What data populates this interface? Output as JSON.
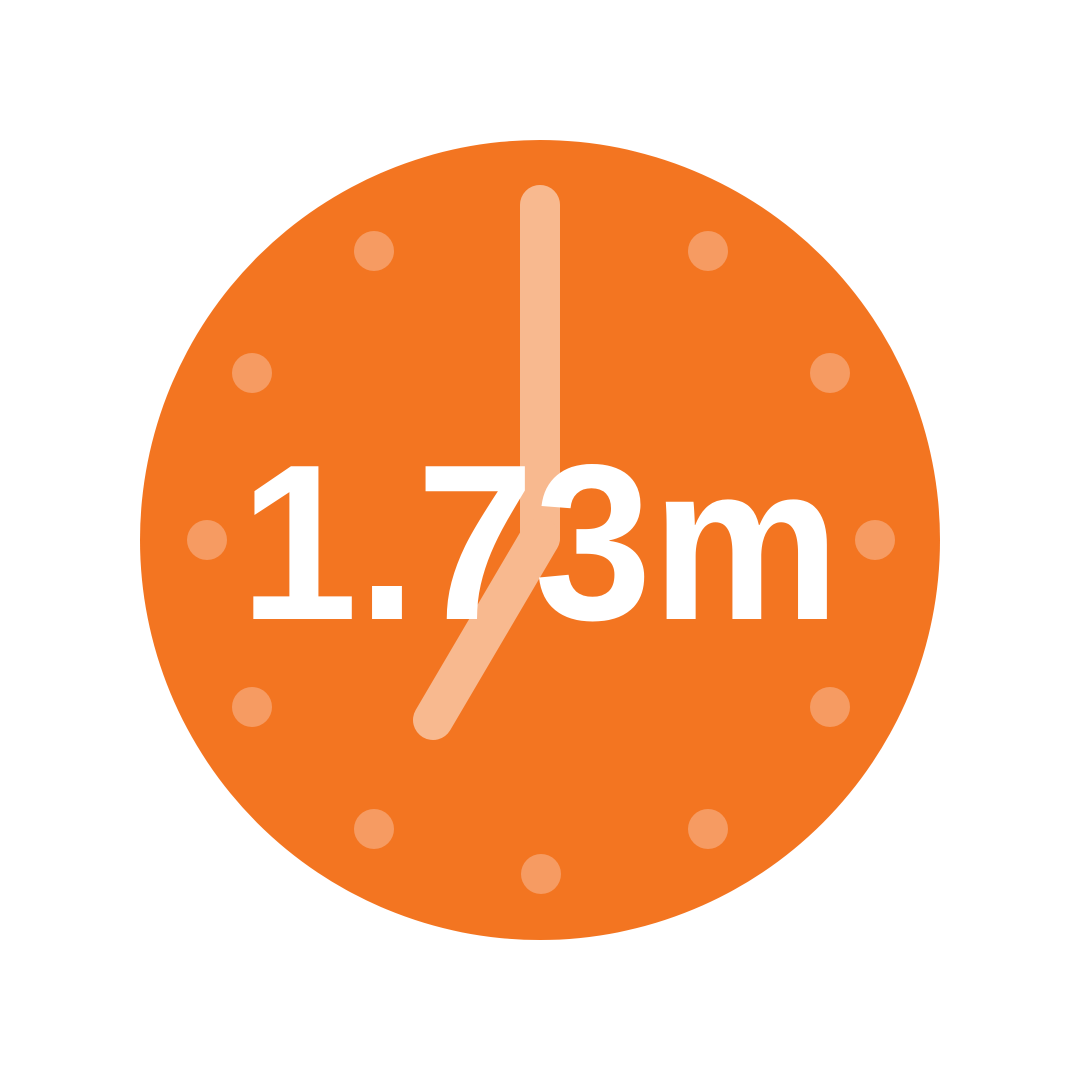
{
  "value_label": "1.73m",
  "icon": "clock-icon",
  "colors": {
    "background": "#ffffff",
    "clock_face": "#f37521",
    "hour_dots": "#f69b62",
    "hands": "#f8b98f",
    "value_text": "#ffffff"
  }
}
